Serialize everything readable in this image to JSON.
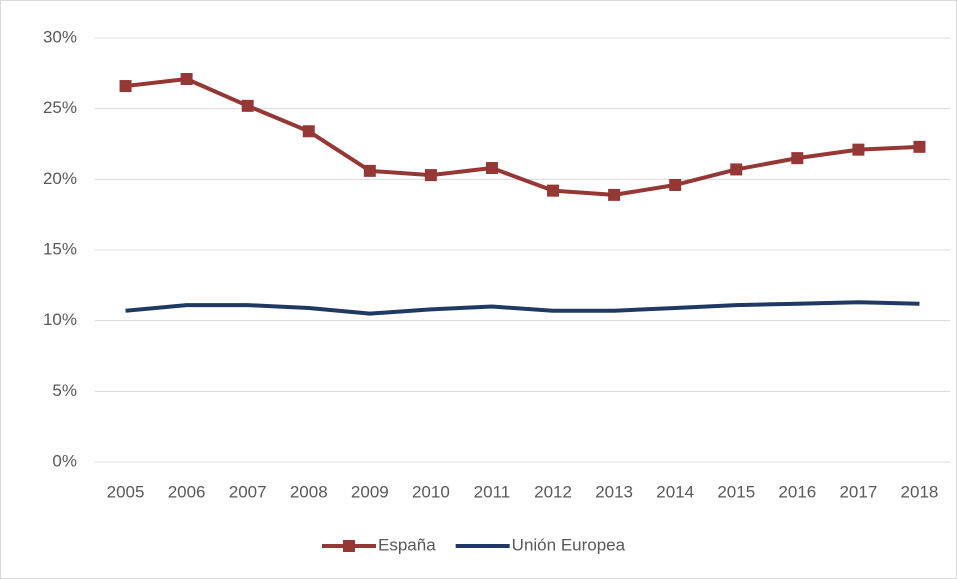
{
  "chart_data": {
    "type": "line",
    "categories": [
      "2005",
      "2006",
      "2007",
      "2008",
      "2009",
      "2010",
      "2011",
      "2012",
      "2013",
      "2014",
      "2015",
      "2016",
      "2017",
      "2018"
    ],
    "series": [
      {
        "name": "España",
        "color": "#953735",
        "marker": "square",
        "values": [
          26.6,
          27.1,
          25.2,
          23.4,
          20.6,
          20.3,
          20.8,
          19.2,
          18.9,
          19.6,
          20.7,
          21.5,
          22.1,
          22.3
        ]
      },
      {
        "name": "Unión Europea",
        "color": "#1f3864",
        "values": [
          10.7,
          11.1,
          11.1,
          10.9,
          10.5,
          10.8,
          11.0,
          10.7,
          10.7,
          10.9,
          11.1,
          11.2,
          11.3,
          11.2
        ]
      }
    ],
    "ylim": [
      0,
      30
    ],
    "yticks": [
      {
        "value": 0,
        "label": "0%"
      },
      {
        "value": 5,
        "label": "5%"
      },
      {
        "value": 10,
        "label": "10%"
      },
      {
        "value": 15,
        "label": "15%"
      },
      {
        "value": 20,
        "label": "20%"
      },
      {
        "value": 25,
        "label": "25%"
      },
      {
        "value": 30,
        "label": "30%"
      }
    ],
    "grid": true,
    "legend": "bottom"
  }
}
